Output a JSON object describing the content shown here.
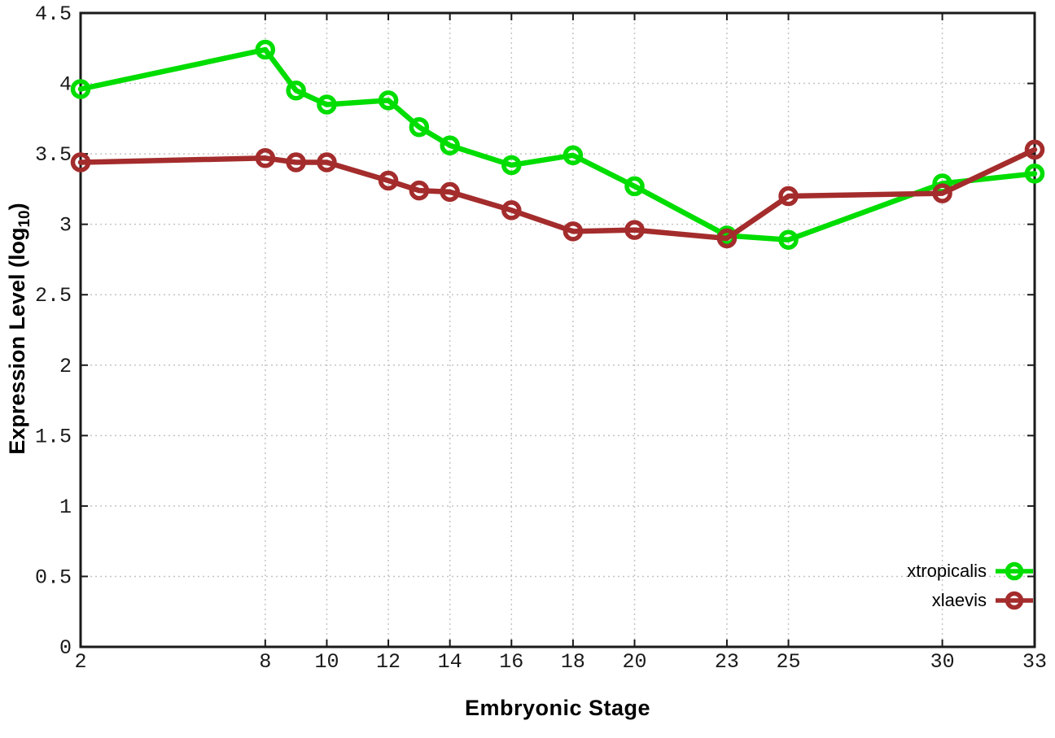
{
  "chart_data": {
    "type": "line",
    "title": "",
    "xlabel": "Embryonic Stage",
    "ylabel": "Expression Level (log10)",
    "ylabel_parts": {
      "main": "Expression Level (log",
      "sub": "10",
      "close": ")"
    },
    "x": [
      2,
      8,
      9,
      10,
      12,
      13,
      14,
      16,
      18,
      20,
      23,
      25,
      30,
      33
    ],
    "series": [
      {
        "name": "xtropicalis",
        "color": "#00DD00",
        "values": [
          3.96,
          4.24,
          3.95,
          3.85,
          3.88,
          3.69,
          3.56,
          3.42,
          3.49,
          3.27,
          2.92,
          2.89,
          3.29,
          3.36
        ]
      },
      {
        "name": "xlaevis",
        "color": "#A42C2C",
        "values": [
          3.44,
          3.47,
          3.44,
          3.44,
          3.31,
          3.24,
          3.23,
          3.1,
          2.95,
          2.96,
          2.9,
          3.2,
          3.22,
          3.53
        ]
      }
    ],
    "xlim": [
      2,
      33
    ],
    "ylim": [
      0,
      4.5
    ],
    "x_ticks": [
      {
        "v": 2,
        "label": "2"
      },
      {
        "v": 8,
        "label": "8"
      },
      {
        "v": 10,
        "label": "10"
      },
      {
        "v": 12,
        "label": "12"
      },
      {
        "v": 14,
        "label": "14"
      },
      {
        "v": 16,
        "label": "16"
      },
      {
        "v": 18,
        "label": "18"
      },
      {
        "v": 20,
        "label": "20"
      },
      {
        "v": 23,
        "label": "23"
      },
      {
        "v": 25,
        "label": "25"
      },
      {
        "v": 30,
        "label": "30"
      },
      {
        "v": 33,
        "label": "33"
      }
    ],
    "y_ticks": [
      {
        "v": 0,
        "label": "0"
      },
      {
        "v": 0.5,
        "label": "0.5"
      },
      {
        "v": 1,
        "label": "1"
      },
      {
        "v": 1.5,
        "label": "1.5"
      },
      {
        "v": 2,
        "label": "2"
      },
      {
        "v": 2.5,
        "label": "2.5"
      },
      {
        "v": 3,
        "label": "3"
      },
      {
        "v": 3.5,
        "label": "3.5"
      },
      {
        "v": 4,
        "label": "4"
      },
      {
        "v": 4.5,
        "label": "4.5"
      }
    ],
    "grid": true,
    "legend_position": "inside-right-bottom",
    "colors": {
      "background": "#ffffff",
      "border": "#1a1a1a",
      "grid": "#c4c4c4",
      "tick_text": "#1a1a1a"
    }
  }
}
